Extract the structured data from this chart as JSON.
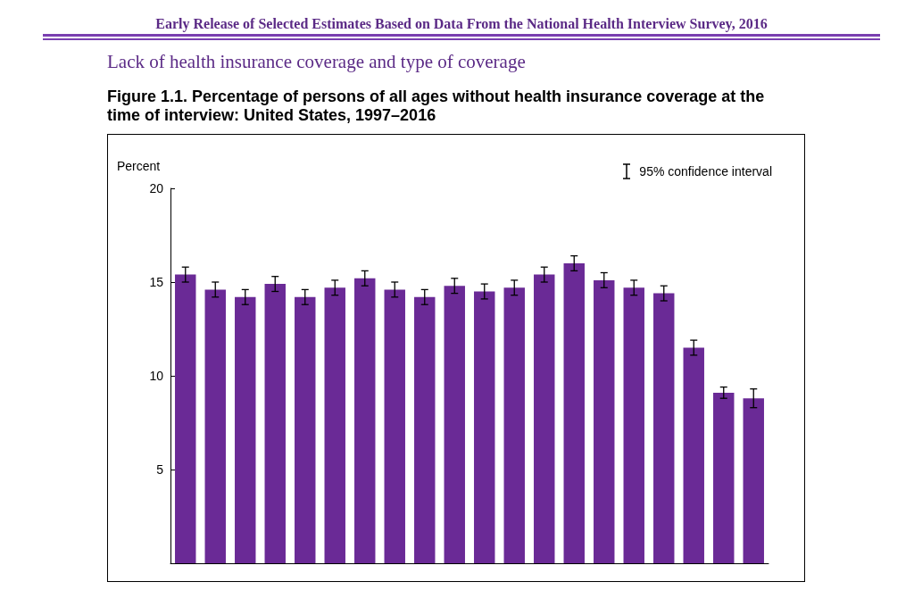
{
  "chart_data": {
    "type": "bar",
    "title": "Figure 1.1. Percentage of persons of all ages without health insurance coverage at the time of interview: United States, 1997–2016",
    "subtitle": "Lack of health insurance coverage and type of coverage",
    "ylabel": "Percent",
    "annotations": [
      "Early Release of Selected Estimates Based on Data From the National Health Interview Survey, 2016",
      "95% confidence interval"
    ],
    "categories": [
      null,
      null,
      null,
      null,
      null,
      null,
      null,
      null,
      null,
      null,
      null,
      null,
      null,
      null,
      null,
      null,
      null,
      null,
      null,
      null
    ],
    "values": [
      15.4,
      14.6,
      14.2,
      14.9,
      14.2,
      14.7,
      15.2,
      14.6,
      14.2,
      14.8,
      14.5,
      14.7,
      15.4,
      16.0,
      15.1,
      14.7,
      14.4,
      11.5,
      9.1,
      8.8
    ],
    "errors": [
      0.4,
      0.4,
      0.4,
      0.4,
      0.4,
      0.4,
      0.4,
      0.4,
      0.4,
      0.4,
      0.4,
      0.4,
      0.4,
      0.4,
      0.4,
      0.4,
      0.4,
      0.4,
      0.3,
      0.5
    ],
    "color": "#6a2a96",
    "ylim": [
      0,
      20
    ],
    "yticks": [
      5,
      10,
      15,
      20
    ],
    "tick_labels": "y"
  }
}
